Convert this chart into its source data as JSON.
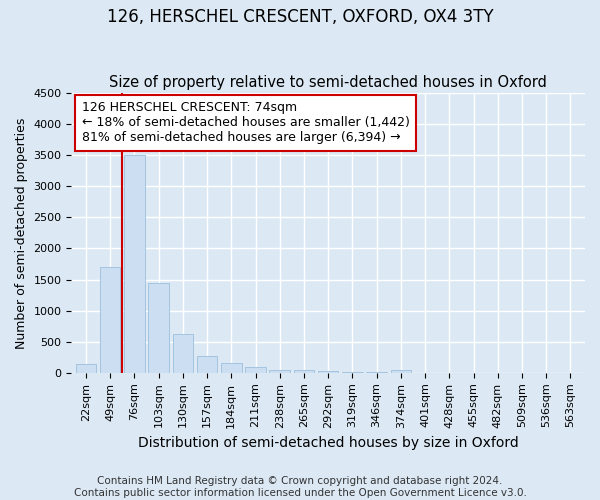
{
  "title": "126, HERSCHEL CRESCENT, OXFORD, OX4 3TY",
  "subtitle": "Size of property relative to semi-detached houses in Oxford",
  "xlabel": "Distribution of semi-detached houses by size in Oxford",
  "ylabel": "Number of semi-detached properties",
  "categories": [
    "22sqm",
    "49sqm",
    "76sqm",
    "103sqm",
    "130sqm",
    "157sqm",
    "184sqm",
    "211sqm",
    "238sqm",
    "265sqm",
    "292sqm",
    "319sqm",
    "346sqm",
    "374sqm",
    "401sqm",
    "428sqm",
    "455sqm",
    "482sqm",
    "509sqm",
    "536sqm",
    "563sqm"
  ],
  "values": [
    140,
    1700,
    3500,
    1450,
    620,
    270,
    160,
    90,
    50,
    50,
    30,
    10,
    10,
    50,
    5,
    3,
    2,
    2,
    1,
    1,
    1
  ],
  "bar_color": "#ccdff2",
  "bar_edge_color": "#9bbfdd",
  "red_line_x": 1.5,
  "red_line_color": "#cc0000",
  "ann_line1": "126 HERSCHEL CRESCENT: 74sqm",
  "ann_line2": "← 18% of semi-detached houses are smaller (1,442)",
  "ann_line3": "81% of semi-detached houses are larger (6,394) →",
  "ann_box_fc": "#ffffff",
  "ann_box_ec": "#cc0000",
  "ylim": [
    0,
    4500
  ],
  "yticks": [
    0,
    500,
    1000,
    1500,
    2000,
    2500,
    3000,
    3500,
    4000,
    4500
  ],
  "bg_color": "#dce9f5",
  "grid_color": "#ffffff",
  "title_fontsize": 12,
  "subtitle_fontsize": 10.5,
  "ylabel_fontsize": 9,
  "xlabel_fontsize": 10,
  "tick_fontsize": 8,
  "ann_fontsize": 9,
  "footer_fontsize": 7.5,
  "footer_line1": "Contains HM Land Registry data © Crown copyright and database right 2024.",
  "footer_line2": "Contains public sector information licensed under the Open Government Licence v3.0."
}
